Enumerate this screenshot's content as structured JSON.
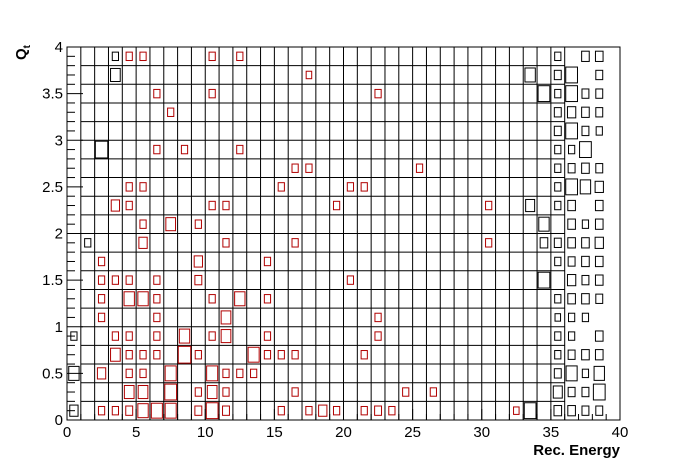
{
  "chart_data": {
    "type": "box-histogram",
    "xlabel": "Rec. Energy",
    "ylabel": "Q",
    "ylabel_subscript": "t",
    "xlim": [
      0,
      40
    ],
    "ylim": [
      0,
      4
    ],
    "x_ticks": [
      "0",
      "5",
      "10",
      "15",
      "20",
      "25",
      "30",
      "35",
      "40"
    ],
    "y_ticks": [
      "0",
      "0.5",
      "1",
      "1.5",
      "2",
      "2.5",
      "3",
      "3.5",
      "4"
    ],
    "bin_width_x": 1,
    "bin_width_y": 0.2,
    "grid_x_range": [
      1,
      36
    ],
    "grid_y_range": [
      0,
      4
    ],
    "colors": {
      "grid": "#000000",
      "black_box": "#000000",
      "red_box": "#b00000"
    },
    "black_boxes": [
      [
        0.5,
        0.1,
        0.6
      ],
      [
        0.5,
        0.5,
        0.75
      ],
      [
        0.5,
        0.9,
        0.45
      ],
      [
        1.5,
        1.9,
        0.45
      ],
      [
        2.5,
        2.9,
        0.9
      ],
      [
        3.5,
        3.7,
        0.7
      ],
      [
        3.5,
        3.9,
        0.45
      ],
      [
        33.5,
        0.1,
        0.85
      ],
      [
        33.5,
        2.3,
        0.65
      ],
      [
        33.5,
        3.7,
        0.75
      ],
      [
        34.5,
        1.9,
        0.55
      ],
      [
        34.5,
        2.1,
        0.75
      ],
      [
        34.5,
        3.5,
        0.85
      ],
      [
        34.5,
        1.5,
        0.85
      ],
      [
        35.5,
        0.1,
        0.55
      ],
      [
        35.5,
        0.3,
        0.65
      ],
      [
        35.5,
        0.5,
        0.5
      ],
      [
        35.5,
        0.7,
        0.45
      ],
      [
        35.5,
        0.9,
        0.45
      ],
      [
        35.5,
        1.1,
        0.4
      ],
      [
        35.5,
        1.3,
        0.45
      ],
      [
        35.5,
        1.7,
        0.45
      ],
      [
        35.5,
        1.9,
        0.5
      ],
      [
        35.5,
        2.3,
        0.45
      ],
      [
        35.5,
        2.5,
        0.45
      ],
      [
        35.5,
        2.7,
        0.45
      ],
      [
        35.5,
        2.9,
        0.45
      ],
      [
        35.5,
        3.1,
        0.5
      ],
      [
        35.5,
        3.3,
        0.5
      ],
      [
        35.5,
        3.5,
        0.45
      ],
      [
        35.5,
        3.7,
        0.5
      ],
      [
        35.5,
        3.9,
        0.45
      ],
      [
        36.5,
        0.1,
        0.55
      ],
      [
        36.5,
        0.3,
        0.5
      ],
      [
        36.5,
        0.5,
        0.8
      ],
      [
        36.5,
        0.7,
        0.5
      ],
      [
        36.5,
        0.9,
        0.45
      ],
      [
        36.5,
        1.1,
        0.45
      ],
      [
        36.5,
        1.3,
        0.55
      ],
      [
        36.5,
        1.5,
        0.6
      ],
      [
        36.5,
        1.7,
        0.5
      ],
      [
        36.5,
        1.9,
        0.55
      ],
      [
        36.5,
        2.1,
        0.55
      ],
      [
        36.5,
        2.3,
        0.55
      ],
      [
        36.5,
        2.5,
        0.85
      ],
      [
        36.5,
        2.7,
        0.5
      ],
      [
        36.5,
        2.9,
        0.45
      ],
      [
        36.5,
        3.1,
        0.85
      ],
      [
        36.5,
        3.3,
        0.6
      ],
      [
        36.5,
        3.5,
        0.85
      ],
      [
        36.5,
        3.7,
        0.85
      ],
      [
        37.5,
        0.1,
        0.5
      ],
      [
        37.5,
        0.3,
        0.5
      ],
      [
        37.5,
        0.5,
        0.45
      ],
      [
        37.5,
        0.7,
        0.55
      ],
      [
        37.5,
        1.1,
        0.45
      ],
      [
        37.5,
        1.3,
        0.55
      ],
      [
        37.5,
        1.5,
        0.5
      ],
      [
        37.5,
        1.7,
        0.55
      ],
      [
        37.5,
        1.9,
        0.55
      ],
      [
        37.5,
        2.1,
        0.45
      ],
      [
        37.5,
        2.5,
        0.75
      ],
      [
        37.5,
        2.7,
        0.55
      ],
      [
        37.5,
        2.9,
        0.85
      ],
      [
        37.5,
        3.1,
        0.5
      ],
      [
        37.5,
        3.3,
        0.55
      ],
      [
        37.5,
        3.5,
        0.5
      ],
      [
        37.5,
        3.9,
        0.55
      ],
      [
        38.5,
        0.1,
        0.5
      ],
      [
        38.5,
        0.3,
        0.85
      ],
      [
        38.5,
        0.5,
        0.75
      ],
      [
        38.5,
        0.7,
        0.55
      ],
      [
        38.5,
        0.9,
        0.55
      ],
      [
        38.5,
        1.3,
        0.5
      ],
      [
        38.5,
        1.5,
        0.55
      ],
      [
        38.5,
        1.7,
        0.55
      ],
      [
        38.5,
        1.9,
        0.6
      ],
      [
        38.5,
        2.1,
        0.55
      ],
      [
        38.5,
        2.3,
        0.55
      ],
      [
        38.5,
        2.5,
        0.6
      ],
      [
        38.5,
        2.7,
        0.5
      ],
      [
        38.5,
        3.1,
        0.45
      ],
      [
        38.5,
        3.3,
        0.5
      ],
      [
        38.5,
        3.5,
        0.5
      ],
      [
        38.5,
        3.7,
        0.5
      ],
      [
        38.5,
        3.9,
        0.55
      ]
    ],
    "red_boxes": [
      [
        2.5,
        0.1,
        0.45
      ],
      [
        3.5,
        0.1,
        0.45
      ],
      [
        4.5,
        0.1,
        0.5
      ],
      [
        5.5,
        0.1,
        0.75
      ],
      [
        6.5,
        0.1,
        0.8
      ],
      [
        7.5,
        0.1,
        0.8
      ],
      [
        9.5,
        0.1,
        0.5
      ],
      [
        10.5,
        0.1,
        0.85
      ],
      [
        11.5,
        0.1,
        0.5
      ],
      [
        15.5,
        0.1,
        0.45
      ],
      [
        17.5,
        0.1,
        0.45
      ],
      [
        18.5,
        0.1,
        0.6
      ],
      [
        19.5,
        0.1,
        0.45
      ],
      [
        21.5,
        0.1,
        0.45
      ],
      [
        22.5,
        0.1,
        0.5
      ],
      [
        23.5,
        0.1,
        0.45
      ],
      [
        32.5,
        0.1,
        0.4
      ],
      [
        4.5,
        0.3,
        0.7
      ],
      [
        5.5,
        0.3,
        0.7
      ],
      [
        7.5,
        0.3,
        0.85
      ],
      [
        9.5,
        0.3,
        0.45
      ],
      [
        10.5,
        0.3,
        0.7
      ],
      [
        11.5,
        0.3,
        0.45
      ],
      [
        16.5,
        0.3,
        0.45
      ],
      [
        24.5,
        0.3,
        0.45
      ],
      [
        26.5,
        0.3,
        0.45
      ],
      [
        2.5,
        0.5,
        0.6
      ],
      [
        4.5,
        0.5,
        0.45
      ],
      [
        5.5,
        0.5,
        0.45
      ],
      [
        7.5,
        0.5,
        0.8
      ],
      [
        10.5,
        0.5,
        0.8
      ],
      [
        11.5,
        0.5,
        0.45
      ],
      [
        12.5,
        0.5,
        0.45
      ],
      [
        13.5,
        0.5,
        0.45
      ],
      [
        3.5,
        0.7,
        0.7
      ],
      [
        4.5,
        0.7,
        0.45
      ],
      [
        5.5,
        0.7,
        0.45
      ],
      [
        6.5,
        0.7,
        0.45
      ],
      [
        8.5,
        0.7,
        0.9
      ],
      [
        9.5,
        0.7,
        0.45
      ],
      [
        13.5,
        0.7,
        0.8
      ],
      [
        14.5,
        0.7,
        0.45
      ],
      [
        15.5,
        0.7,
        0.45
      ],
      [
        16.5,
        0.7,
        0.45
      ],
      [
        21.5,
        0.7,
        0.45
      ],
      [
        3.5,
        0.9,
        0.45
      ],
      [
        4.5,
        0.9,
        0.45
      ],
      [
        6.5,
        0.9,
        0.45
      ],
      [
        8.5,
        0.9,
        0.75
      ],
      [
        10.5,
        0.9,
        0.45
      ],
      [
        11.5,
        0.9,
        0.7
      ],
      [
        14.5,
        0.9,
        0.45
      ],
      [
        22.5,
        0.9,
        0.45
      ],
      [
        2.5,
        1.1,
        0.45
      ],
      [
        6.5,
        1.1,
        0.45
      ],
      [
        11.5,
        1.1,
        0.7
      ],
      [
        22.5,
        1.1,
        0.45
      ],
      [
        2.5,
        1.3,
        0.45
      ],
      [
        4.5,
        1.3,
        0.75
      ],
      [
        5.5,
        1.3,
        0.75
      ],
      [
        6.5,
        1.3,
        0.45
      ],
      [
        10.5,
        1.3,
        0.45
      ],
      [
        12.5,
        1.3,
        0.75
      ],
      [
        14.5,
        1.3,
        0.45
      ],
      [
        2.5,
        1.5,
        0.45
      ],
      [
        3.5,
        1.5,
        0.45
      ],
      [
        4.5,
        1.5,
        0.45
      ],
      [
        6.5,
        1.5,
        0.45
      ],
      [
        9.5,
        1.5,
        0.5
      ],
      [
        20.5,
        1.5,
        0.45
      ],
      [
        2.5,
        1.7,
        0.45
      ],
      [
        9.5,
        1.7,
        0.6
      ],
      [
        14.5,
        1.7,
        0.45
      ],
      [
        5.5,
        1.9,
        0.6
      ],
      [
        11.5,
        1.9,
        0.45
      ],
      [
        16.5,
        1.9,
        0.45
      ],
      [
        30.5,
        1.9,
        0.45
      ],
      [
        5.5,
        2.1,
        0.45
      ],
      [
        7.5,
        2.1,
        0.7
      ],
      [
        9.5,
        2.1,
        0.45
      ],
      [
        3.5,
        2.3,
        0.6
      ],
      [
        4.5,
        2.3,
        0.45
      ],
      [
        10.5,
        2.3,
        0.45
      ],
      [
        11.5,
        2.3,
        0.45
      ],
      [
        19.5,
        2.3,
        0.45
      ],
      [
        30.5,
        2.3,
        0.45
      ],
      [
        4.5,
        2.5,
        0.45
      ],
      [
        5.5,
        2.5,
        0.45
      ],
      [
        15.5,
        2.5,
        0.45
      ],
      [
        20.5,
        2.5,
        0.45
      ],
      [
        21.5,
        2.5,
        0.45
      ],
      [
        16.5,
        2.7,
        0.45
      ],
      [
        17.5,
        2.7,
        0.45
      ],
      [
        25.5,
        2.7,
        0.45
      ],
      [
        6.5,
        2.9,
        0.45
      ],
      [
        8.5,
        2.9,
        0.45
      ],
      [
        12.5,
        2.9,
        0.45
      ],
      [
        7.5,
        3.3,
        0.45
      ],
      [
        6.5,
        3.5,
        0.45
      ],
      [
        10.5,
        3.5,
        0.45
      ],
      [
        22.5,
        3.5,
        0.45
      ],
      [
        17.5,
        3.7,
        0.4
      ],
      [
        4.5,
        3.9,
        0.45
      ],
      [
        5.5,
        3.9,
        0.45
      ],
      [
        10.5,
        3.9,
        0.45
      ],
      [
        12.5,
        3.9,
        0.45
      ]
    ]
  }
}
